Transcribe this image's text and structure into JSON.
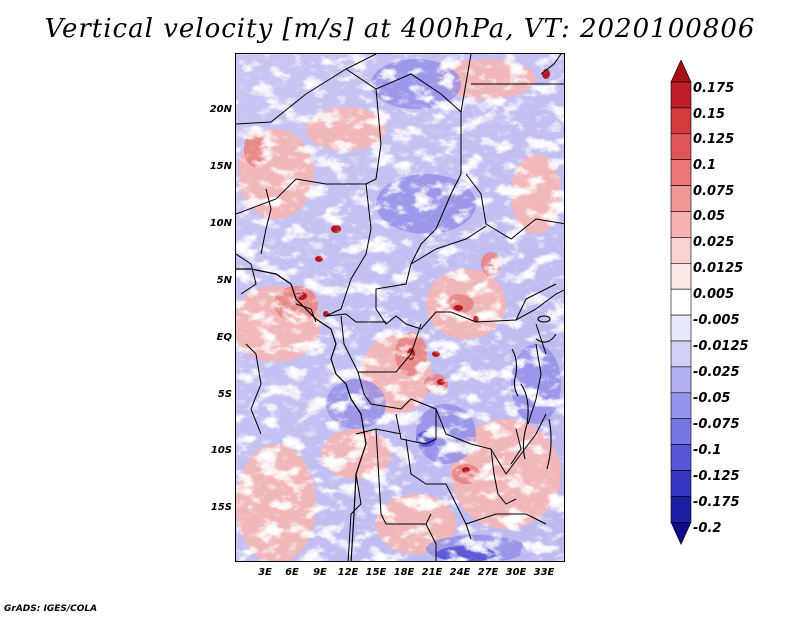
{
  "title": "Vertical velocity [m/s] at 400hPa, VT: 2020100806",
  "credit": "GrADS: IGES/COLA",
  "map": {
    "variable": "Vertical velocity",
    "units": "m/s",
    "level": "400hPa",
    "valid_time": "2020100806",
    "lat_labels": [
      "20N",
      "15N",
      "10N",
      "5N",
      "EQ",
      "5S",
      "10S",
      "15S"
    ],
    "lon_labels": [
      "3E",
      "6E",
      "9E",
      "12E",
      "15E",
      "18E",
      "21E",
      "24E",
      "27E",
      "30E",
      "33E"
    ]
  },
  "colorbar": {
    "labels": [
      "0.175",
      "0.15",
      "0.125",
      "0.1",
      "0.075",
      "0.05",
      "0.025",
      "0.0125",
      "0.005",
      "-0.005",
      "-0.0125",
      "-0.025",
      "-0.05",
      "-0.075",
      "-0.1",
      "-0.125",
      "-0.175",
      "-0.2"
    ],
    "colors": [
      "#a50f15",
      "#c01e26",
      "#d33a3a",
      "#e05555",
      "#ea7676",
      "#f19696",
      "#f6b3b3",
      "#fad0d0",
      "#fde8e8",
      "#ffffff",
      "#e8e8fb",
      "#d0d0f7",
      "#b2b2f2",
      "#9494ec",
      "#7575e3",
      "#5656d6",
      "#3535c0",
      "#1e1ea5",
      "#100b8a"
    ]
  }
}
